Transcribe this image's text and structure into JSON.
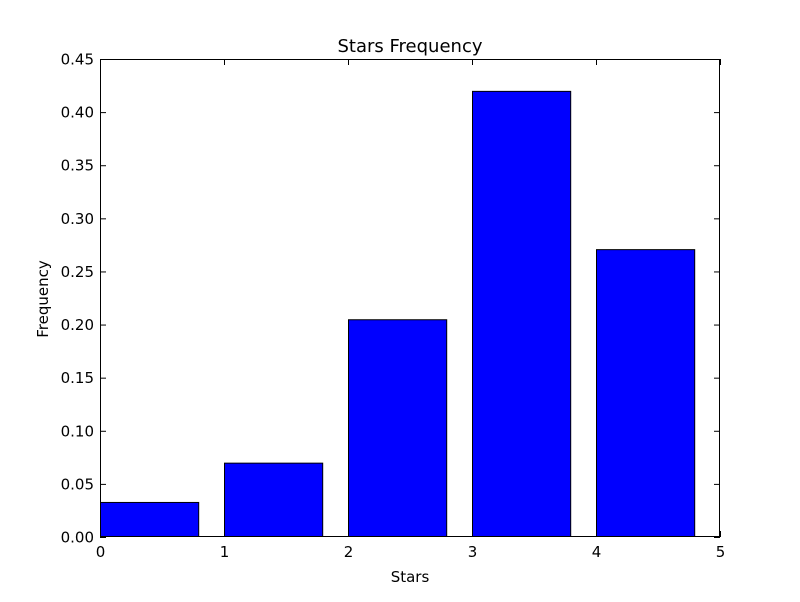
{
  "chart_data": {
    "type": "bar",
    "title": "Stars Frequency",
    "xlabel": "Stars",
    "ylabel": "Frequency",
    "x": [
      0,
      1,
      2,
      3,
      4
    ],
    "bar_width": 0.8,
    "values": [
      0.033,
      0.07,
      0.205,
      0.42,
      0.271
    ],
    "xlim": [
      0,
      5
    ],
    "ylim": [
      0,
      0.45
    ],
    "xticks": [
      "0",
      "1",
      "2",
      "3",
      "4",
      "5"
    ],
    "yticks": [
      "0.00",
      "0.05",
      "0.10",
      "0.15",
      "0.20",
      "0.25",
      "0.30",
      "0.35",
      "0.40",
      "0.45"
    ],
    "grid": false,
    "bar_color": "#0000ff",
    "edge_color": "#000000"
  }
}
